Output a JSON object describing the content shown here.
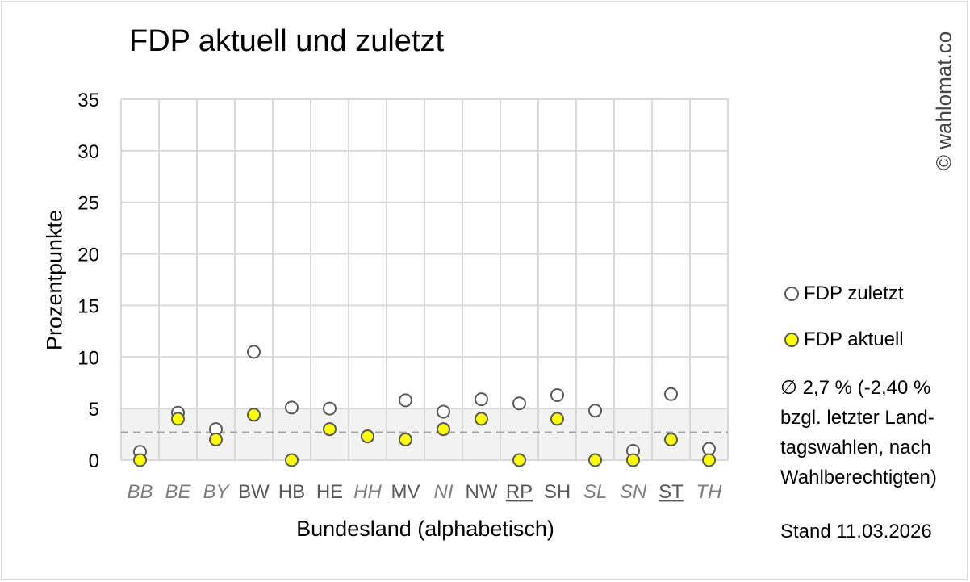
{
  "chart_data": {
    "type": "scatter",
    "title": "FDP aktuell und zuletzt",
    "xlabel": "Bundesland (alphabetisch)",
    "ylabel": "Prozentpunkte",
    "ylim": [
      0,
      35
    ],
    "yticks": [
      0,
      5,
      10,
      15,
      20,
      25,
      30,
      35
    ],
    "grid": true,
    "legend_position": "right",
    "categories": [
      {
        "label": "BB",
        "style": "italic"
      },
      {
        "label": "BE",
        "style": "italic"
      },
      {
        "label": "BY",
        "style": "italic"
      },
      {
        "label": "BW",
        "style": "normal"
      },
      {
        "label": "HB",
        "style": "normal"
      },
      {
        "label": "HE",
        "style": "normal"
      },
      {
        "label": "HH",
        "style": "italic"
      },
      {
        "label": "MV",
        "style": "normal"
      },
      {
        "label": "NI",
        "style": "italic"
      },
      {
        "label": "NW",
        "style": "normal"
      },
      {
        "label": "RP",
        "style": "underline"
      },
      {
        "label": "SH",
        "style": "normal"
      },
      {
        "label": "SL",
        "style": "italic"
      },
      {
        "label": "SN",
        "style": "italic"
      },
      {
        "label": "ST",
        "style": "underline"
      },
      {
        "label": "TH",
        "style": "italic"
      }
    ],
    "series": [
      {
        "name": "FDP zuletzt",
        "fill": "#ffffff",
        "stroke": "#595959",
        "values": [
          0.8,
          4.6,
          3.0,
          10.5,
          5.1,
          5.0,
          2.3,
          5.8,
          4.7,
          5.9,
          5.5,
          6.3,
          4.8,
          0.9,
          6.4,
          1.1
        ]
      },
      {
        "name": "FDP aktuell",
        "fill": "#ffff00",
        "stroke": "#595959",
        "values": [
          0.0,
          4.0,
          2.0,
          4.4,
          0.0,
          3.0,
          2.3,
          2.0,
          3.0,
          4.0,
          0.0,
          4.0,
          0.0,
          0.0,
          2.0,
          0.0
        ]
      }
    ],
    "band": {
      "from": 0,
      "to": 5,
      "color": "#f2f2f2"
    },
    "average_line": {
      "value": 2.7,
      "style": "dashed",
      "color": "#a6a6a6"
    }
  },
  "legend": {
    "zuletzt": "FDP zuletzt",
    "aktuell": "FDP aktuell"
  },
  "average_note": {
    "line1": "∅ 2,7 % (-2,40 %",
    "line2": "bzgl. letzter Land-",
    "line3": "tagswahlen, nach",
    "line4": "Wahlberechtigten)"
  },
  "stand": "Stand 11.03.2026",
  "copyright": "© wahlomat.co",
  "colors": {
    "grid": "#d9d9d9",
    "tick_italic": "#7f7f7f",
    "marker_stroke": "#595959",
    "aktuell": "#ffff00"
  }
}
